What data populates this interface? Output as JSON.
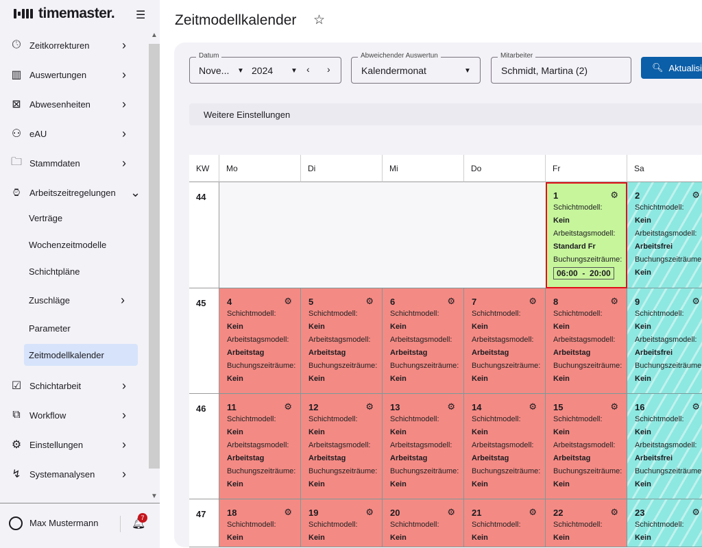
{
  "app": {
    "logo": "timemaster.",
    "title": "Zeitmodellkalender"
  },
  "sidebar": {
    "items": [
      {
        "label": "Zeitkorrekturen",
        "icon": "clock-icon"
      },
      {
        "label": "Auswertungen",
        "icon": "chart-icon"
      },
      {
        "label": "Abwesenheiten",
        "icon": "calendar-x-icon"
      },
      {
        "label": "eAU",
        "icon": "person-icon"
      },
      {
        "label": "Stammdaten",
        "icon": "folder-icon"
      },
      {
        "label": "Arbeitszeitregelungen",
        "icon": "briefcase-clock-icon",
        "expanded": true
      }
    ],
    "subitems": [
      {
        "label": "Verträge"
      },
      {
        "label": "Wochenzeitmodelle"
      },
      {
        "label": "Schichtpläne"
      },
      {
        "label": "Zuschläge",
        "chevron": true
      },
      {
        "label": "Parameter"
      },
      {
        "label": "Zeitmodellkalender",
        "active": true
      }
    ],
    "items2": [
      {
        "label": "Schichtarbeit",
        "icon": "calendar-check-icon"
      },
      {
        "label": "Workflow",
        "icon": "workflow-icon"
      },
      {
        "label": "Einstellungen",
        "icon": "gear-icon"
      },
      {
        "label": "Systemanalysen",
        "icon": "analytics-icon"
      }
    ]
  },
  "user": {
    "name": "Max Mustermann",
    "notifications": "7"
  },
  "filters": {
    "datum": {
      "label": "Datum",
      "month": "Nove...",
      "year": "2024"
    },
    "auswertung": {
      "label": "Abweichender Auswertun",
      "value": "Kalendermonat"
    },
    "mitarbeiter": {
      "label": "Mitarbeiter",
      "value": "Schmidt, Martina (2)"
    },
    "refresh": "Aktualisieren",
    "more": "Weitere Einstellungen"
  },
  "calendar": {
    "headers": [
      "KW",
      "Mo",
      "Di",
      "Mi",
      "Do",
      "Fr",
      "Sa"
    ],
    "labels": {
      "schicht": "Schichtmodell:",
      "arbeitstag": "Arbeitstagsmodell:",
      "buchung": "Buchungszeiträume:"
    },
    "colors": {
      "work": "#f48a84",
      "free": "#8de8e1",
      "today": "#c6f59c"
    },
    "weeks": [
      {
        "kw": "44",
        "days": [
          null,
          null,
          null,
          null,
          {
            "day": "1",
            "schicht": "Kein",
            "arbeitstag": "Standard Fr",
            "buchung": "06:00  -  20:00",
            "type": "today"
          },
          {
            "day": "2",
            "schicht": "Kein",
            "arbeitstag": "Arbeitsfrei",
            "buchung": "Kein",
            "type": "free"
          }
        ]
      },
      {
        "kw": "45",
        "days": [
          {
            "day": "4",
            "schicht": "Kein",
            "arbeitstag": "Arbeitstag",
            "buchung": "Kein",
            "type": "work"
          },
          {
            "day": "5",
            "schicht": "Kein",
            "arbeitstag": "Arbeitstag",
            "buchung": "Kein",
            "type": "work"
          },
          {
            "day": "6",
            "schicht": "Kein",
            "arbeitstag": "Arbeitstag",
            "buchung": "Kein",
            "type": "work"
          },
          {
            "day": "7",
            "schicht": "Kein",
            "arbeitstag": "Arbeitstag",
            "buchung": "Kein",
            "type": "work"
          },
          {
            "day": "8",
            "schicht": "Kein",
            "arbeitstag": "Arbeitstag",
            "buchung": "Kein",
            "type": "work"
          },
          {
            "day": "9",
            "schicht": "Kein",
            "arbeitstag": "Arbeitsfrei",
            "buchung": "Kein",
            "type": "free"
          }
        ]
      },
      {
        "kw": "46",
        "days": [
          {
            "day": "11",
            "schicht": "Kein",
            "arbeitstag": "Arbeitstag",
            "buchung": "Kein",
            "type": "work"
          },
          {
            "day": "12",
            "schicht": "Kein",
            "arbeitstag": "Arbeitstag",
            "buchung": "Kein",
            "type": "work"
          },
          {
            "day": "13",
            "schicht": "Kein",
            "arbeitstag": "Arbeitstag",
            "buchung": "Kein",
            "type": "work"
          },
          {
            "day": "14",
            "schicht": "Kein",
            "arbeitstag": "Arbeitstag",
            "buchung": "Kein",
            "type": "work"
          },
          {
            "day": "15",
            "schicht": "Kein",
            "arbeitstag": "Arbeitstag",
            "buchung": "Kein",
            "type": "work"
          },
          {
            "day": "16",
            "schicht": "Kein",
            "arbeitstag": "Arbeitsfrei",
            "buchung": "Kein",
            "type": "free"
          }
        ]
      },
      {
        "kw": "47",
        "days": [
          {
            "day": "18",
            "schicht": "Kein",
            "type": "work"
          },
          {
            "day": "19",
            "schicht": "Kein",
            "type": "work"
          },
          {
            "day": "20",
            "schicht": "Kein",
            "type": "work"
          },
          {
            "day": "21",
            "schicht": "Kein",
            "type": "work"
          },
          {
            "day": "22",
            "schicht": "Kein",
            "type": "work"
          },
          {
            "day": "23",
            "schicht": "Kein",
            "type": "free"
          }
        ]
      }
    ]
  }
}
